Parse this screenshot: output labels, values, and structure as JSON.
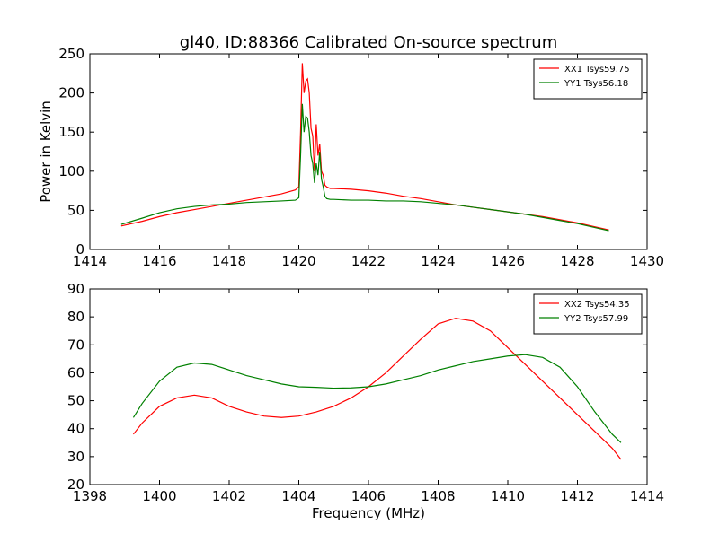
{
  "figure": {
    "title": "gl40, ID:88366 Calibrated On-source spectrum",
    "xlabel_bottom": "Frequency (MHz)"
  },
  "chart_data": [
    {
      "type": "line",
      "title": "gl40, ID:88366 Calibrated On-source spectrum",
      "xlabel": "",
      "ylabel": "Power in Kelvin",
      "xlim": [
        1414,
        1430
      ],
      "ylim": [
        0,
        250
      ],
      "xticks": [
        1414,
        1416,
        1418,
        1420,
        1422,
        1424,
        1426,
        1428,
        1430
      ],
      "yticks": [
        0,
        50,
        100,
        150,
        200,
        250
      ],
      "grid": false,
      "legend_position": "top-right",
      "series": [
        {
          "name": "XX1 Tsys59.75",
          "color": "#ff0000",
          "x": [
            1414.9,
            1415.5,
            1416.0,
            1416.5,
            1417.0,
            1417.5,
            1418.0,
            1418.5,
            1419.0,
            1419.5,
            1419.9,
            1420.0,
            1420.05,
            1420.1,
            1420.15,
            1420.2,
            1420.25,
            1420.3,
            1420.35,
            1420.4,
            1420.45,
            1420.5,
            1420.55,
            1420.6,
            1420.65,
            1420.7,
            1420.75,
            1420.8,
            1420.9,
            1421.0,
            1421.5,
            1422.0,
            1422.5,
            1423.0,
            1423.5,
            1424.0,
            1424.5,
            1425.0,
            1425.5,
            1426.0,
            1426.5,
            1427.0,
            1427.5,
            1428.0,
            1428.5,
            1428.9
          ],
          "y": [
            30,
            36,
            42,
            47,
            51,
            55,
            59,
            63,
            67,
            71,
            76,
            80,
            150,
            238,
            200,
            215,
            218,
            200,
            155,
            145,
            100,
            160,
            120,
            135,
            100,
            95,
            82,
            80,
            78,
            78,
            77,
            75,
            72,
            68,
            65,
            61,
            57,
            54,
            51,
            48,
            45,
            42,
            38,
            34,
            29,
            25
          ]
        },
        {
          "name": "YY1 Tsys56.18",
          "color": "#008000",
          "x": [
            1414.9,
            1415.5,
            1416.0,
            1416.5,
            1417.0,
            1417.5,
            1418.0,
            1418.5,
            1419.0,
            1419.5,
            1419.9,
            1420.0,
            1420.05,
            1420.1,
            1420.15,
            1420.2,
            1420.25,
            1420.3,
            1420.35,
            1420.4,
            1420.45,
            1420.5,
            1420.55,
            1420.6,
            1420.65,
            1420.7,
            1420.75,
            1420.8,
            1420.9,
            1421.0,
            1421.5,
            1422.0,
            1422.5,
            1423.0,
            1423.5,
            1424.0,
            1424.5,
            1425.0,
            1425.5,
            1426.0,
            1426.5,
            1427.0,
            1427.5,
            1428.0,
            1428.5,
            1428.9
          ],
          "y": [
            32,
            40,
            47,
            52,
            55,
            57,
            58,
            60,
            61,
            62,
            63,
            66,
            120,
            186,
            150,
            170,
            168,
            150,
            120,
            110,
            85,
            110,
            95,
            125,
            90,
            80,
            68,
            65,
            64,
            64,
            63,
            63,
            62,
            62,
            61,
            59,
            57,
            54,
            51,
            48,
            45,
            41,
            37,
            33,
            28,
            24
          ]
        }
      ]
    },
    {
      "type": "line",
      "title": "",
      "xlabel": "Frequency (MHz)",
      "ylabel": "",
      "xlim": [
        1398,
        1414
      ],
      "ylim": [
        20,
        90
      ],
      "xticks": [
        1398,
        1400,
        1402,
        1404,
        1406,
        1408,
        1410,
        1412,
        1414
      ],
      "yticks": [
        20,
        30,
        40,
        50,
        60,
        70,
        80,
        90
      ],
      "grid": false,
      "legend_position": "top-right",
      "series": [
        {
          "name": "XX2 Tsys54.35",
          "color": "#ff0000",
          "x": [
            1399.25,
            1399.5,
            1400.0,
            1400.5,
            1401.0,
            1401.5,
            1402.0,
            1402.5,
            1403.0,
            1403.5,
            1404.0,
            1404.5,
            1405.0,
            1405.5,
            1406.0,
            1406.5,
            1407.0,
            1407.5,
            1408.0,
            1408.5,
            1409.0,
            1409.5,
            1410.0,
            1410.5,
            1411.0,
            1411.5,
            1412.0,
            1412.5,
            1413.0,
            1413.25
          ],
          "y": [
            38,
            42,
            48,
            51,
            52,
            51,
            48,
            46,
            44.5,
            44,
            44.5,
            46,
            48,
            51,
            55,
            60,
            66,
            72,
            77.5,
            79.5,
            78.5,
            75,
            69,
            63,
            57,
            51,
            45,
            39,
            33,
            29
          ]
        },
        {
          "name": "YY2 Tsys57.99",
          "color": "#008000",
          "x": [
            1399.25,
            1399.5,
            1400.0,
            1400.5,
            1401.0,
            1401.5,
            1402.0,
            1402.5,
            1403.0,
            1403.5,
            1404.0,
            1404.5,
            1405.0,
            1405.5,
            1406.0,
            1406.5,
            1407.0,
            1407.5,
            1408.0,
            1408.5,
            1409.0,
            1409.5,
            1410.0,
            1410.5,
            1411.0,
            1411.5,
            1412.0,
            1412.5,
            1413.0,
            1413.25
          ],
          "y": [
            44,
            49,
            57,
            62,
            63.5,
            63,
            61,
            59,
            57.5,
            56,
            55,
            54.8,
            54.5,
            54.6,
            55,
            56,
            57.5,
            59,
            61,
            62.5,
            64,
            65,
            66,
            66.5,
            65.5,
            62,
            55,
            46,
            38,
            35
          ]
        }
      ]
    }
  ]
}
